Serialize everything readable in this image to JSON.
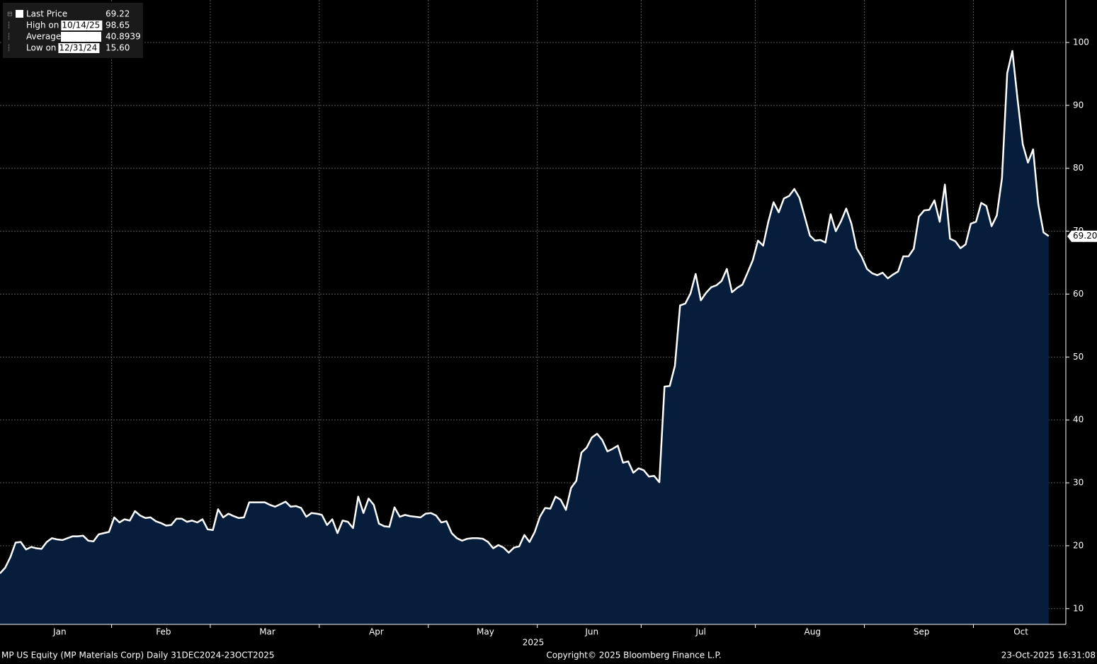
{
  "chart_data": {
    "type": "area",
    "values": [
      15.6,
      16.5,
      18.2,
      20.5,
      20.6,
      19.4,
      19.8,
      19.6,
      19.5,
      20.6,
      21.2,
      21.0,
      20.9,
      21.2,
      21.5,
      21.5,
      21.6,
      20.8,
      20.7,
      21.8,
      22.0,
      22.2,
      24.5,
      23.7,
      24.2,
      24.0,
      25.5,
      24.8,
      24.4,
      24.5,
      23.9,
      23.6,
      23.2,
      23.3,
      24.3,
      24.3,
      23.8,
      24.0,
      23.7,
      24.2,
      22.6,
      22.5,
      25.8,
      24.5,
      25.1,
      24.7,
      24.4,
      24.5,
      26.9,
      26.9,
      26.9,
      26.9,
      26.5,
      26.2,
      26.6,
      27.0,
      26.2,
      26.3,
      26.0,
      24.6,
      25.2,
      25.1,
      24.9,
      23.3,
      24.2,
      22.0,
      24.0,
      23.8,
      22.8,
      27.8,
      25.2,
      27.5,
      26.5,
      23.5,
      23.1,
      23.0,
      26.1,
      24.6,
      24.9,
      24.7,
      24.6,
      24.5,
      25.1,
      25.2,
      24.8,
      23.7,
      23.9,
      22.0,
      21.2,
      20.8,
      21.1,
      21.2,
      21.2,
      21.1,
      20.6,
      19.6,
      20.1,
      19.7,
      18.9,
      19.7,
      19.9,
      21.7,
      20.6,
      22.2,
      24.6,
      26.0,
      25.9,
      27.8,
      27.3,
      25.7,
      29.2,
      30.3,
      34.8,
      35.6,
      37.2,
      37.8,
      36.8,
      35.0,
      35.4,
      35.9,
      33.2,
      33.4,
      31.6,
      32.3,
      32.0,
      31.0,
      31.1,
      30.1,
      45.3,
      45.4,
      48.6,
      58.2,
      58.5,
      60.1,
      63.2,
      59.0,
      60.2,
      61.1,
      61.4,
      62.1,
      64.0,
      60.3,
      61.0,
      61.5,
      63.4,
      65.4,
      68.5,
      67.7,
      71.5,
      74.6,
      73.0,
      75.2,
      75.6,
      76.7,
      75.3,
      72.3,
      69.3,
      68.5,
      68.6,
      68.2,
      72.7,
      70.0,
      71.6,
      73.6,
      71.2,
      67.3,
      65.9,
      64.0,
      63.3,
      63.0,
      63.4,
      62.5,
      63.1,
      63.6,
      66.0,
      66.0,
      67.2,
      72.3,
      73.3,
      73.4,
      74.9,
      71.5,
      77.4,
      68.8,
      68.4,
      67.3,
      67.9,
      71.2,
      71.5,
      74.5,
      74.0,
      70.8,
      72.5,
      78.4,
      95.1,
      98.65,
      91.0,
      83.8,
      80.9,
      83.0,
      74.3,
      69.8,
      69.22
    ],
    "line_color": "#ffffff",
    "fill_color": "#061e3c",
    "xlim": [
      0,
      205.3
    ],
    "xticks": [
      {
        "value": 1,
        "label": "Jan"
      },
      {
        "value": 22,
        "label": "Feb"
      },
      {
        "value": 41,
        "label": "Mar"
      },
      {
        "value": 62,
        "label": "Apr"
      },
      {
        "value": 83,
        "label": "May"
      },
      {
        "value": 104,
        "label": "Jun"
      },
      {
        "value": 124,
        "label": "Jul"
      },
      {
        "value": 146,
        "label": "Aug"
      },
      {
        "value": 167,
        "label": "Sep"
      },
      {
        "value": 188,
        "label": "Oct"
      }
    ],
    "year_label": "2025",
    "ylim": [
      7.5,
      106.75
    ],
    "yticks": [
      10,
      20,
      30,
      40,
      50,
      60,
      70,
      80,
      90,
      100
    ],
    "grid": true,
    "last_tag": {
      "value": 69.2,
      "label": "69.20"
    },
    "legend": [
      {
        "label": "Last Price",
        "value": 69.22
      },
      {
        "label": "High on",
        "date": "10/14/25",
        "value": 98.65
      },
      {
        "label": "Average",
        "value": 40.8939
      },
      {
        "label": "Low on",
        "date": "12/31/24",
        "value": {
          "value": 15.6,
          "label": "15.60"
        }
      }
    ],
    "footer": {
      "left": "MP US Equity (MP Materials Corp) Daily 31DEC2024-23OCT2025",
      "center": "Copyright© 2025 Bloomberg Finance L.P.",
      "right": "23-Oct-2025 16:31:08"
    }
  }
}
